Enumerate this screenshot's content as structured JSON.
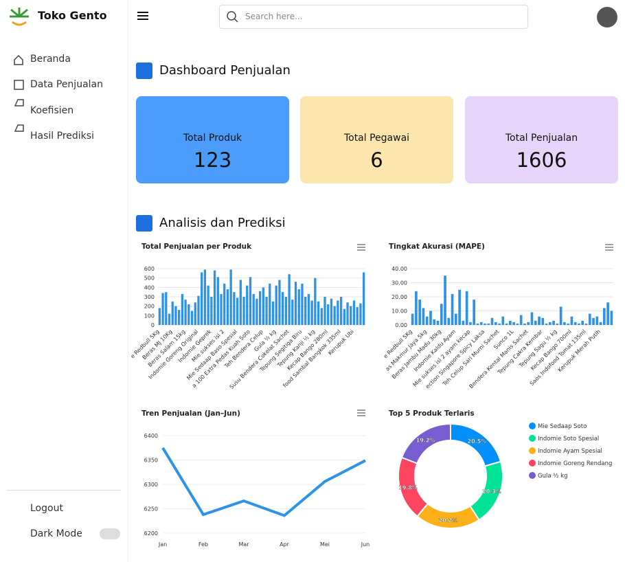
{
  "brand": "Toko Gento",
  "search_placeholder": "Search here...",
  "menu": [
    "Beranda",
    "Data Penjualan",
    "Koefisien",
    "Hasil Prediksi"
  ],
  "footer_menu": [
    "Logout",
    "Dark Mode"
  ],
  "dashboard": {
    "title": "Dashboard Penjualan",
    "cards": [
      {
        "label": "Total Produk",
        "value": "123"
      },
      {
        "label": "Total Pegawai",
        "value": "6"
      },
      {
        "label": "Total Penjualan",
        "value": "1606"
      }
    ]
  },
  "analysis_title": "Analisis dan Prediksi",
  "chart_data": [
    {
      "type": "bar",
      "title": "Total Penjualan per Produk",
      "color": "#2e93e6",
      "categories": [
        "e Redbull 5Kg",
        null,
        null,
        null,
        "Beras MJ 10Kg",
        null,
        null,
        null,
        "Beras Salam 15kg",
        null,
        null,
        null,
        "Indomie Goreng Original",
        null,
        null,
        null,
        "Indomie Geprek",
        null,
        null,
        null,
        "Mie sukses isi 2",
        null,
        null,
        null,
        "Mie Sedaap Baso Spesial",
        null,
        null,
        null,
        "a 100 Extra Pedas Kuah Soto",
        null,
        null,
        null,
        "Teh Bendera Celup",
        null,
        null,
        null,
        "Gula ½ kg",
        null,
        null,
        null,
        "Susu Bendera Cokelat Sachet",
        null,
        null,
        null,
        "Tepung Segitiga Biru",
        null,
        null,
        null,
        "Tepung Kanji ½ kg",
        null,
        null,
        null,
        "Kecap Bango 280ml",
        null,
        null,
        null,
        "food Sambal Bangkok 335ml",
        null,
        null,
        null,
        "Kerupuk Ubi",
        null,
        null,
        null
      ],
      "values": [
        180,
        340,
        350,
        120,
        250,
        200,
        160,
        330,
        270,
        220,
        150,
        240,
        310,
        560,
        590,
        420,
        300,
        580,
        510,
        330,
        440,
        380,
        590,
        350,
        290,
        480,
        300,
        420,
        510,
        330,
        280,
        360,
        400,
        300,
        440,
        250,
        420,
        480,
        350,
        300,
        540,
        270,
        460,
        380,
        440,
        300,
        330,
        260,
        500,
        250,
        180,
        300,
        220,
        280,
        200,
        260,
        300,
        170,
        240,
        200,
        260,
        190,
        230,
        560
      ],
      "ylim": [
        0,
        600
      ],
      "yticks": [
        0,
        100,
        200,
        300,
        400,
        500,
        600
      ],
      "grid": true
    },
    {
      "type": "bar",
      "title": "Tingkat Akurasi (MAPE)",
      "color": "#2e93e6",
      "categories": [
        "e Redbull 5Kg",
        null,
        null,
        null,
        "as Makmur Jaya 5kg",
        null,
        null,
        null,
        "Beras Jambu Madu 30kg",
        null,
        null,
        null,
        "Indomie Kaldu Ayam",
        null,
        null,
        null,
        "Mie sukses isi 2 ayam kecap",
        null,
        null,
        null,
        "ection Singapore Spicy Laksa",
        null,
        null,
        null,
        "Teh Celup Sari Murni Sachet",
        null,
        null,
        null,
        "Sunco 1L",
        null,
        null,
        null,
        "Bendera Kental Manis Sachet",
        null,
        null,
        null,
        "Tepung Cakra Kembar",
        null,
        null,
        null,
        "Tepung Sagu ½ kg",
        null,
        null,
        null,
        "Kecap Bango 700ml",
        null,
        null,
        null,
        "Saos Indofood Tomat 135ml",
        null,
        null,
        null,
        "Kerupuk Merah Putih",
        null,
        null,
        null
      ],
      "values": [
        8,
        24,
        18,
        12,
        6,
        10,
        4,
        3,
        15,
        35,
        5,
        22,
        8,
        25,
        3,
        24,
        2,
        18,
        1,
        2,
        1,
        1,
        5,
        2,
        1,
        6,
        1,
        3,
        2,
        1,
        7,
        1,
        2,
        9,
        3,
        6,
        5,
        1,
        2,
        3,
        1,
        13,
        2,
        1,
        6,
        2,
        1,
        3,
        1,
        8,
        5,
        6,
        2,
        12,
        16,
        10
      ],
      "ylim": [
        0,
        40
      ],
      "yticks": [
        {
          "value": 0,
          "label": "0.00"
        },
        {
          "value": 10,
          "label": "10.00"
        },
        {
          "value": 20,
          "label": "20.00"
        },
        {
          "value": 30,
          "label": "30.00"
        },
        {
          "value": 40,
          "label": "40.00"
        }
      ],
      "grid": true
    },
    {
      "type": "line",
      "title": "Tren Penjualan (Jan–Jun)",
      "color": "#2e93e6",
      "categories": [
        "Jan",
        "Feb",
        "Mar",
        "Apr",
        "Mei",
        "Jun"
      ],
      "values": [
        6375,
        6238,
        6266,
        6236,
        6306,
        6349
      ],
      "ylim": [
        6190,
        6420
      ],
      "yticks": [
        6200,
        6250,
        6300,
        6350,
        6400
      ],
      "grid": true
    },
    {
      "type": "pie",
      "title": "Top 5 Produk Terlaris",
      "donut": true,
      "legend": "right",
      "categories": [
        "Mie Sedaap Soto",
        "Indomie Soto Spesial",
        "Indomie Ayam Spesial",
        "Indomie Goreng Rendang",
        "Gula ½ kg"
      ],
      "values": [
        20.5,
        20.3,
        20.2,
        19.8,
        19.2
      ],
      "value_labels": [
        "20.5%",
        "20.3%",
        "20.2%",
        "19.8%",
        "19.2%"
      ],
      "colors": [
        "#008ffb",
        "#00e396",
        "#feb019",
        "#ff4560",
        "#775dd0"
      ]
    }
  ]
}
